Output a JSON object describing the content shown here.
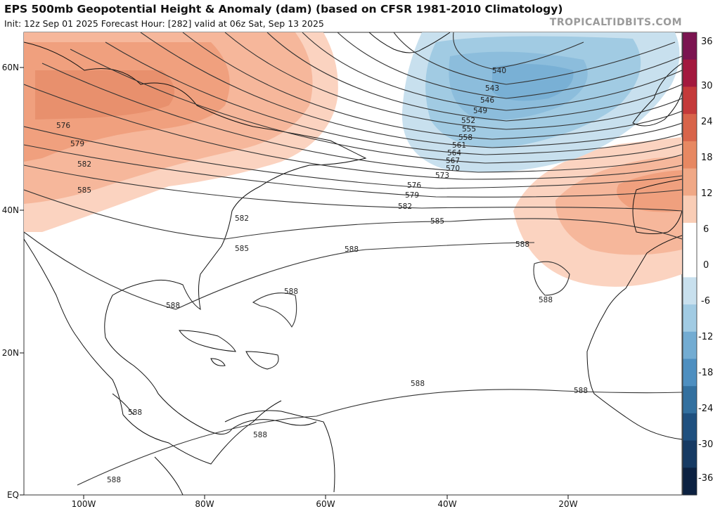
{
  "header": {
    "title": "EPS 500mb Geopotential Height & Anomaly (dam) (based on CFSR 1981-2010 Climatology)",
    "subtitle": "Init: 12z Sep 01 2025   Forecast Hour: [282]   valid at 06z Sat, Sep 13 2025",
    "credit": "TROPICALTIDBITS.COM"
  },
  "map": {
    "lat_labels": [
      "60N",
      "40N",
      "20N",
      "EQ"
    ],
    "lon_labels": [
      "100W",
      "80W",
      "60W",
      "40W",
      "20W"
    ],
    "contour_labels": [
      "540",
      "543",
      "546",
      "549",
      "552",
      "555",
      "558",
      "561",
      "564",
      "567",
      "570",
      "573",
      "576",
      "579",
      "582",
      "585",
      "588"
    ],
    "extra_labels": [
      "576",
      "579",
      "582",
      "585",
      "582",
      "585",
      "588",
      "588",
      "588",
      "588",
      "588",
      "588",
      "588",
      "588",
      "588"
    ]
  },
  "colorbar": {
    "ticks": [
      "36",
      "30",
      "24",
      "18",
      "12",
      "6",
      "0",
      "-6",
      "-12",
      "-18",
      "-24",
      "-30",
      "-36"
    ],
    "colors": [
      "#7b1450",
      "#a3193e",
      "#c43a3a",
      "#d8644a",
      "#e78862",
      "#f0a886",
      "#f9cdb6",
      "#ffffff",
      "#ffffff",
      "#c8e0ee",
      "#a1cbe3",
      "#73acd2",
      "#4e8fc0",
      "#33709f",
      "#1f507f",
      "#163a63",
      "#0c2141"
    ]
  },
  "colors": {
    "positive_anomaly": "#f3a98a",
    "negative_anomaly": "#7fb3d8",
    "contour": "#333333",
    "land_outline": "#111111"
  }
}
